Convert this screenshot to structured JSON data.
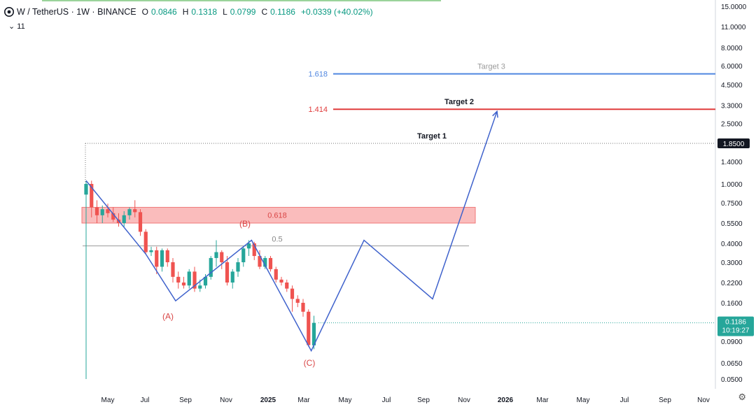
{
  "header": {
    "symbol": "W / TetherUS · 1W · BINANCE",
    "open_label": "O",
    "open": "0.0846",
    "high_label": "H",
    "high": "0.1318",
    "low_label": "L",
    "low": "0.0799",
    "close_label": "C",
    "close": "0.1186",
    "change": "+0.0339 (+40.02%)",
    "indicator_toggle": "⌄ 11"
  },
  "colors": {
    "up": "#26a69a",
    "down": "#ef5350",
    "wave": "#3f62cc",
    "target_red": "#e03c3c",
    "target_blue": "#4f86e0",
    "zone": "#f8a5a5"
  },
  "chart_data": {
    "type": "candlestick",
    "y_scale": "log",
    "ylim": [
      0.045,
      16
    ],
    "y_ticks": [
      "15.0000",
      "11.0000",
      "8.0000",
      "6.0000",
      "4.5000",
      "3.3000",
      "2.5000",
      "1.8500",
      "1.4000",
      "1.0000",
      "0.7500",
      "0.5500",
      "0.4000",
      "0.3000",
      "0.2200",
      "0.1600",
      "0.1186",
      "0.0900",
      "0.0650",
      "0.0500"
    ],
    "x_ticks": [
      "May",
      "Jul",
      "Sep",
      "Nov",
      "2025",
      "Mar",
      "May",
      "Jul",
      "Sep",
      "Nov",
      "2026",
      "Mar",
      "May",
      "Jul",
      "Sep",
      "Nov"
    ],
    "candles": [
      {
        "o": 0.85,
        "h": 1.05,
        "l": 0.05,
        "c": 1.0
      },
      {
        "o": 1.0,
        "h": 1.05,
        "l": 0.6,
        "c": 0.7
      },
      {
        "o": 0.7,
        "h": 0.78,
        "l": 0.55,
        "c": 0.62
      },
      {
        "o": 0.62,
        "h": 0.72,
        "l": 0.55,
        "c": 0.68
      },
      {
        "o": 0.68,
        "h": 0.74,
        "l": 0.6,
        "c": 0.64
      },
      {
        "o": 0.64,
        "h": 0.7,
        "l": 0.56,
        "c": 0.58
      },
      {
        "o": 0.58,
        "h": 0.64,
        "l": 0.52,
        "c": 0.55
      },
      {
        "o": 0.55,
        "h": 0.66,
        "l": 0.52,
        "c": 0.62
      },
      {
        "o": 0.62,
        "h": 0.7,
        "l": 0.58,
        "c": 0.68
      },
      {
        "o": 0.68,
        "h": 0.78,
        "l": 0.6,
        "c": 0.65
      },
      {
        "o": 0.65,
        "h": 0.68,
        "l": 0.45,
        "c": 0.48
      },
      {
        "o": 0.48,
        "h": 0.5,
        "l": 0.34,
        "c": 0.35
      },
      {
        "o": 0.35,
        "h": 0.38,
        "l": 0.33,
        "c": 0.36
      },
      {
        "o": 0.36,
        "h": 0.38,
        "l": 0.25,
        "c": 0.28
      },
      {
        "o": 0.28,
        "h": 0.37,
        "l": 0.26,
        "c": 0.36
      },
      {
        "o": 0.36,
        "h": 0.37,
        "l": 0.28,
        "c": 0.3
      },
      {
        "o": 0.3,
        "h": 0.32,
        "l": 0.22,
        "c": 0.24
      },
      {
        "o": 0.24,
        "h": 0.26,
        "l": 0.2,
        "c": 0.22
      },
      {
        "o": 0.22,
        "h": 0.24,
        "l": 0.2,
        "c": 0.21
      },
      {
        "o": 0.21,
        "h": 0.27,
        "l": 0.2,
        "c": 0.26
      },
      {
        "o": 0.26,
        "h": 0.28,
        "l": 0.19,
        "c": 0.2
      },
      {
        "o": 0.2,
        "h": 0.23,
        "l": 0.19,
        "c": 0.21
      },
      {
        "o": 0.21,
        "h": 0.25,
        "l": 0.2,
        "c": 0.24
      },
      {
        "o": 0.24,
        "h": 0.33,
        "l": 0.23,
        "c": 0.32
      },
      {
        "o": 0.32,
        "h": 0.42,
        "l": 0.28,
        "c": 0.35
      },
      {
        "o": 0.35,
        "h": 0.36,
        "l": 0.27,
        "c": 0.3
      },
      {
        "o": 0.3,
        "h": 0.33,
        "l": 0.21,
        "c": 0.22
      },
      {
        "o": 0.22,
        "h": 0.27,
        "l": 0.2,
        "c": 0.26
      },
      {
        "o": 0.26,
        "h": 0.32,
        "l": 0.24,
        "c": 0.3
      },
      {
        "o": 0.3,
        "h": 0.38,
        "l": 0.28,
        "c": 0.37
      },
      {
        "o": 0.37,
        "h": 0.42,
        "l": 0.33,
        "c": 0.4
      },
      {
        "o": 0.4,
        "h": 0.41,
        "l": 0.31,
        "c": 0.33
      },
      {
        "o": 0.33,
        "h": 0.36,
        "l": 0.27,
        "c": 0.28
      },
      {
        "o": 0.28,
        "h": 0.33,
        "l": 0.27,
        "c": 0.32
      },
      {
        "o": 0.32,
        "h": 0.33,
        "l": 0.26,
        "c": 0.27
      },
      {
        "o": 0.27,
        "h": 0.28,
        "l": 0.22,
        "c": 0.23
      },
      {
        "o": 0.23,
        "h": 0.24,
        "l": 0.21,
        "c": 0.22
      },
      {
        "o": 0.22,
        "h": 0.23,
        "l": 0.19,
        "c": 0.2
      },
      {
        "o": 0.2,
        "h": 0.21,
        "l": 0.14,
        "c": 0.17
      },
      {
        "o": 0.17,
        "h": 0.18,
        "l": 0.15,
        "c": 0.16
      },
      {
        "o": 0.16,
        "h": 0.17,
        "l": 0.13,
        "c": 0.14
      },
      {
        "o": 0.14,
        "h": 0.145,
        "l": 0.083,
        "c": 0.085
      },
      {
        "o": 0.0846,
        "h": 0.1318,
        "l": 0.0799,
        "c": 0.1186
      }
    ],
    "levels": [
      {
        "label": "1.618",
        "price": 5.3,
        "tag": "5.3000",
        "title": "Target 3",
        "color": "#4f86e0"
      },
      {
        "label": "1.414",
        "price": 3.1,
        "tag": "3.1000",
        "title": "Target 2",
        "color": "#e03c3c"
      },
      {
        "label": "",
        "price": 1.85,
        "tag": "1.8500",
        "title": "Target 1",
        "color": "#131722"
      }
    ],
    "zone": {
      "label": "0.618",
      "low": 0.55,
      "high": 0.7
    },
    "fib_0_5": {
      "label": "0.5",
      "price": 0.385
    },
    "current_price": {
      "value": "0.1186",
      "countdown": "10:19:27"
    },
    "wave_labels": [
      {
        "text": "(A)",
        "price": 0.125
      },
      {
        "text": "(B)",
        "price": 0.52
      },
      {
        "text": "(C)",
        "price": 0.062
      }
    ],
    "wave_path": [
      {
        "i": 0,
        "p": 1.05
      },
      {
        "i": 11,
        "p": 0.34
      },
      {
        "i": 16.5,
        "p": 0.165
      },
      {
        "i": 30.5,
        "p": 0.42
      },
      {
        "i": 41.5,
        "p": 0.078
      },
      {
        "i": -1,
        "p": 0.42
      },
      {
        "i": -2,
        "p": 0.17
      },
      {
        "i": -3,
        "p": 3.0
      }
    ]
  }
}
